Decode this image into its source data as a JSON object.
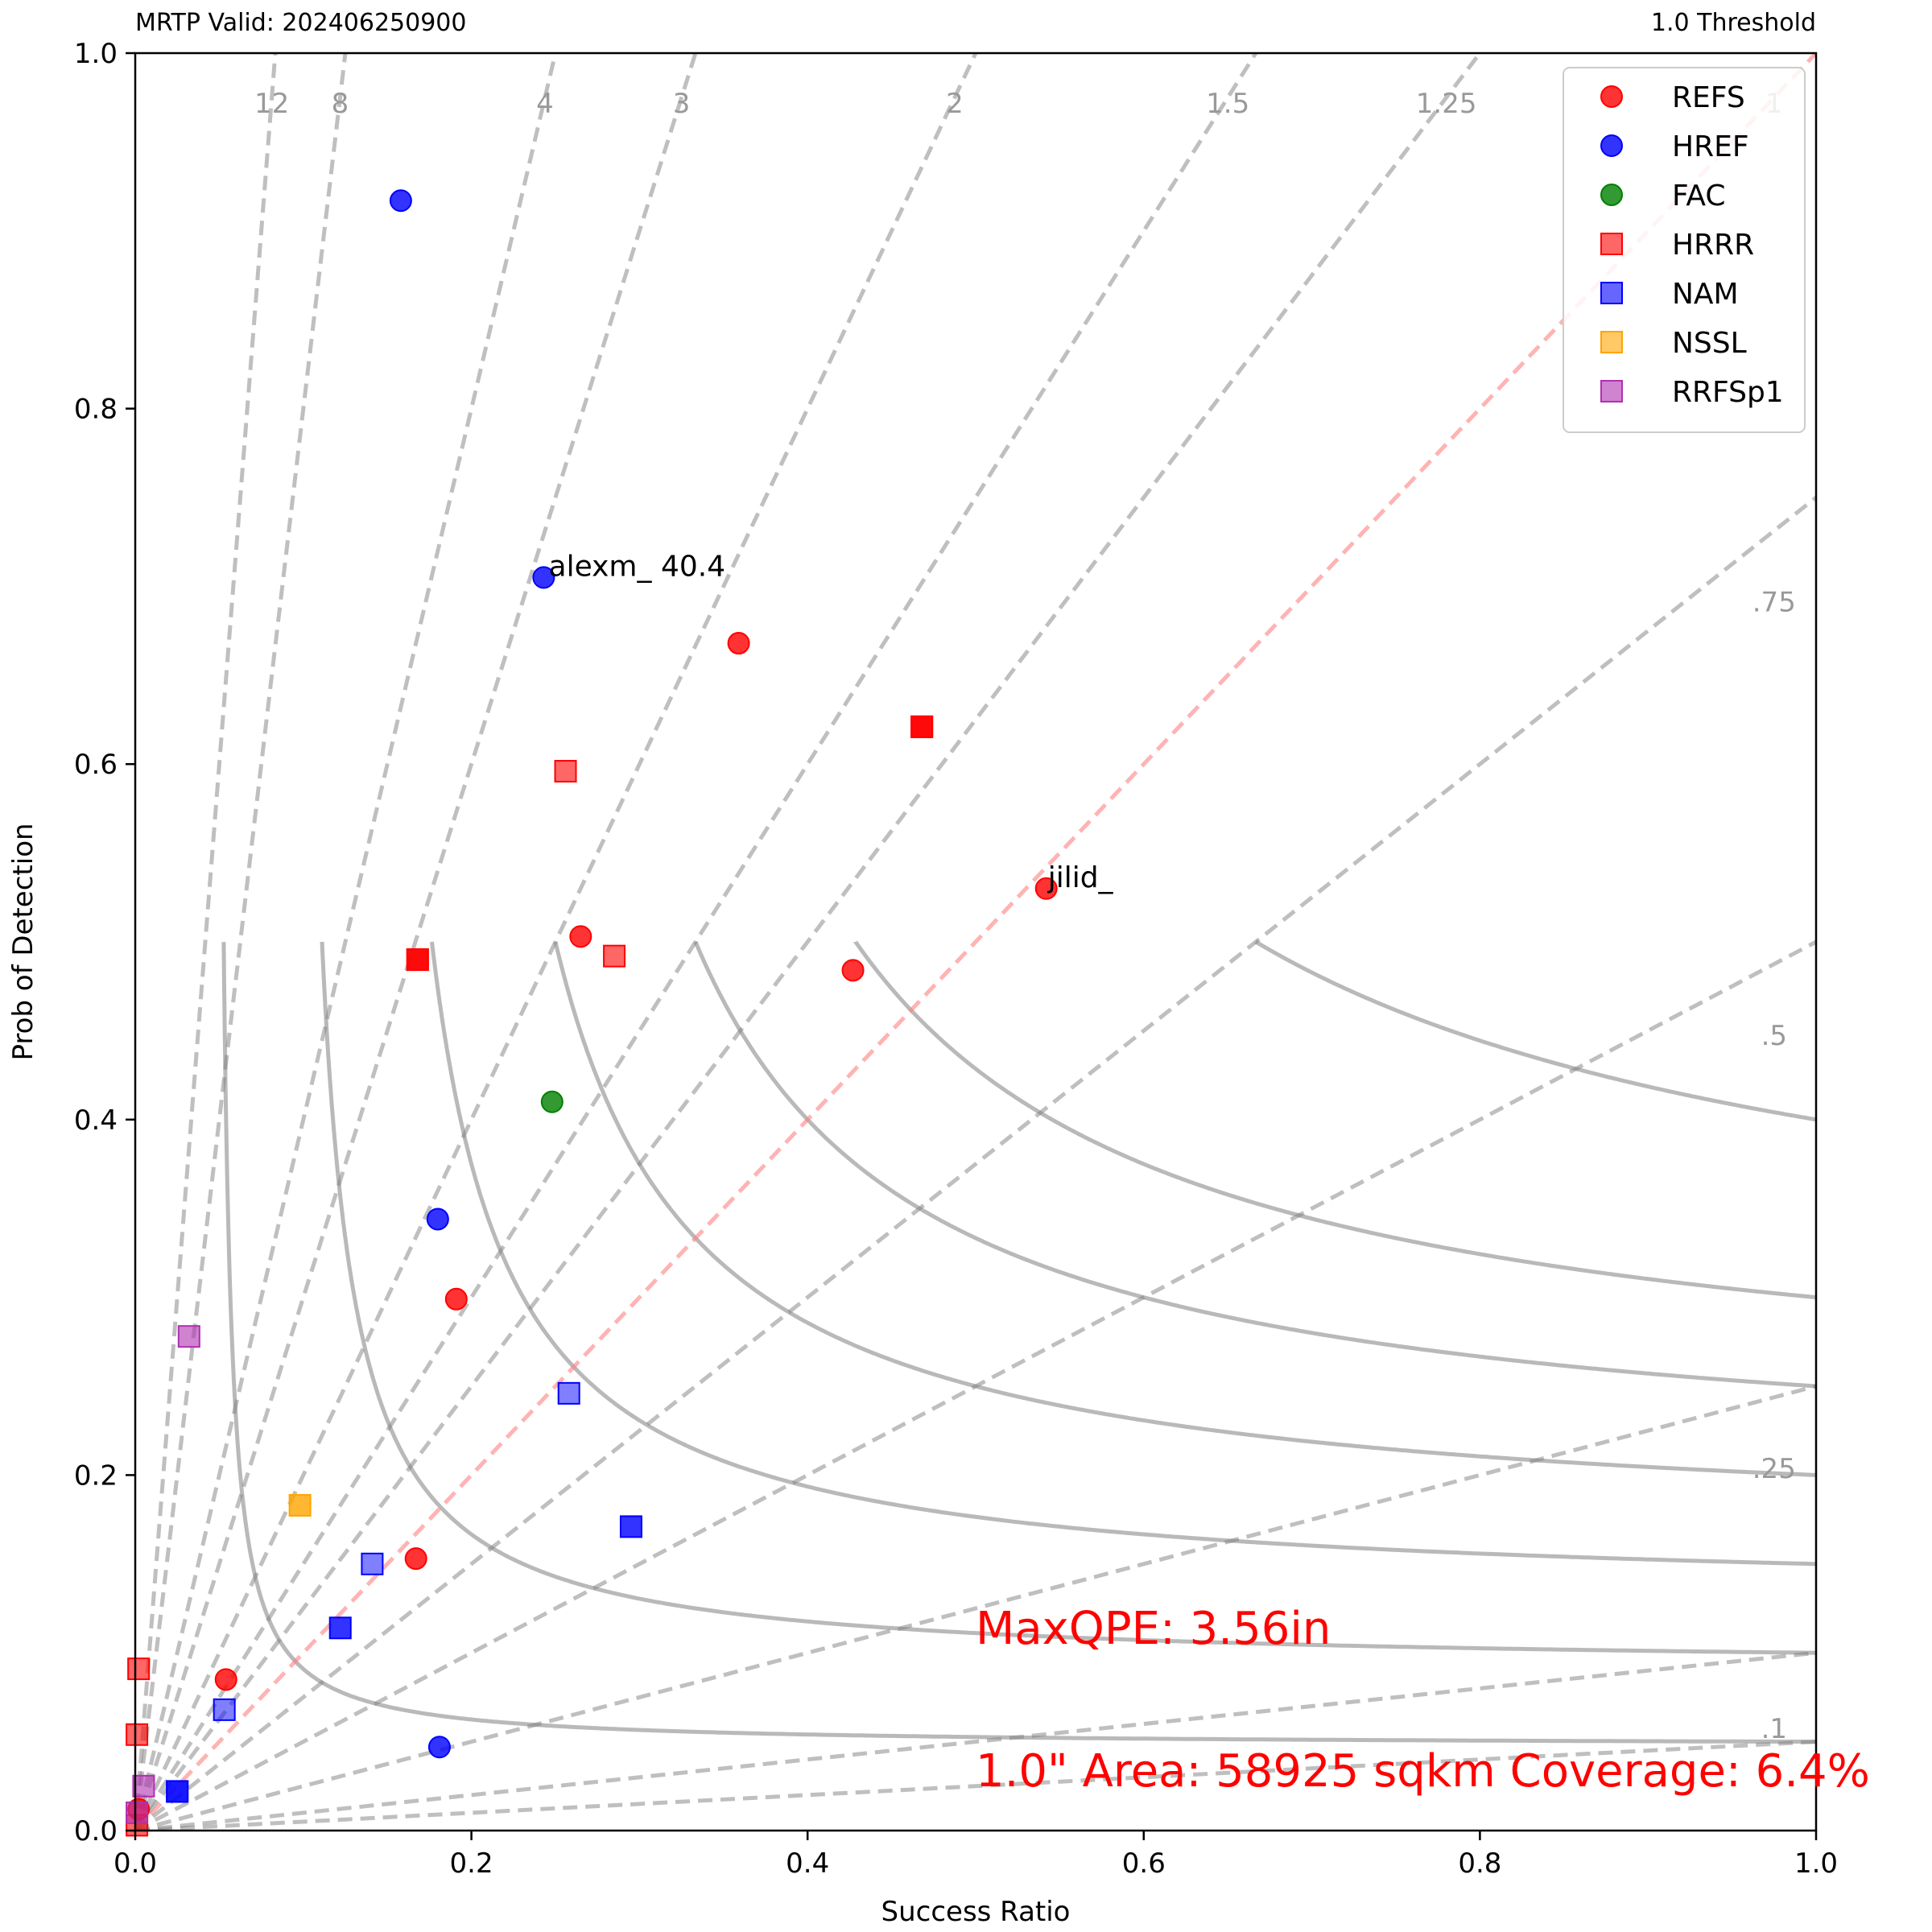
{
  "header": {
    "left": "MRTP Valid: 202406250900",
    "right": "1.0 Threshold"
  },
  "chart_data": {
    "type": "scatter",
    "xlabel": "Success Ratio",
    "ylabel": "Prob of Detection",
    "xlim": [
      0,
      1
    ],
    "ylim": [
      0,
      1
    ],
    "x_ticks": [
      "0.0",
      "0.2",
      "0.4",
      "0.6",
      "0.8",
      "1.0"
    ],
    "y_ticks": [
      "0.0",
      "0.2",
      "0.4",
      "0.6",
      "0.8",
      "1.0"
    ],
    "grid": false,
    "legend_position": "top-right",
    "bias_lines": [
      {
        "value": 12,
        "label": "12"
      },
      {
        "value": 8,
        "label": "8"
      },
      {
        "value": 4,
        "label": "4"
      },
      {
        "value": 3,
        "label": "3"
      },
      {
        "value": 2,
        "label": "2"
      },
      {
        "value": 1.5,
        "label": "1.5"
      },
      {
        "value": 1.25,
        "label": "1.25"
      },
      {
        "value": 1,
        "label": "1"
      },
      {
        "value": 0.75,
        "label": ".75"
      },
      {
        "value": 0.5,
        "label": ".5"
      },
      {
        "value": 0.25,
        "label": ".25"
      },
      {
        "value": 0.1,
        "label": ".1"
      },
      {
        "value": 0.05,
        "label": ""
      }
    ],
    "csi_values": [
      0.05,
      0.1,
      0.15,
      0.2,
      0.25,
      0.3,
      0.4,
      0.5,
      0.6,
      0.7,
      0.8,
      0.9
    ],
    "series": [
      {
        "name": "REFS",
        "marker": "circle",
        "color": "#ff0000",
        "alpha": 0.8,
        "points": [
          [
            0.359,
            0.668
          ],
          [
            0.427,
            0.484
          ],
          [
            0.265,
            0.503
          ],
          [
            0.191,
            0.299
          ],
          [
            0.167,
            0.153
          ],
          [
            0.054,
            0.085
          ],
          [
            0.542,
            0.53
          ],
          [
            0.002,
            0.012
          ]
        ]
      },
      {
        "name": "HREF",
        "marker": "circle",
        "color": "#0000ff",
        "alpha": 0.8,
        "points": [
          [
            0.158,
            0.917
          ],
          [
            0.243,
            0.705
          ],
          [
            0.18,
            0.344
          ],
          [
            0.181,
            0.047
          ]
        ]
      },
      {
        "name": "FAC",
        "marker": "circle",
        "color": "#008000",
        "alpha": 0.8,
        "points": [
          [
            0.248,
            0.41
          ]
        ]
      },
      {
        "name": "HRRR",
        "marker": "square",
        "color": "#ff0000",
        "alpha": 0.6,
        "points": [
          [
            0.256,
            0.596
          ],
          [
            0.168,
            0.49
          ],
          [
            0.285,
            0.492
          ],
          [
            0.468,
            0.621
          ],
          [
            0.002,
            0.091
          ],
          [
            0.001,
            0.054
          ],
          [
            0.001,
            0.003
          ]
        ]
      },
      {
        "name": "HRRR",
        "marker": "square",
        "color": "#ff0000",
        "alpha": 0.9,
        "legend": false,
        "points": [
          [
            0.168,
            0.49
          ],
          [
            0.468,
            0.621
          ]
        ]
      },
      {
        "name": "NAM",
        "marker": "square",
        "color": "#0000ff",
        "alpha": 0.5,
        "points": [
          [
            0.258,
            0.246
          ],
          [
            0.141,
            0.15
          ],
          [
            0.053,
            0.068
          ],
          [
            0.025,
            0.022
          ]
        ]
      },
      {
        "name": "NAM",
        "marker": "square",
        "color": "#0000ff",
        "alpha": 0.8,
        "legend": false,
        "points": [
          [
            0.295,
            0.171
          ],
          [
            0.122,
            0.114
          ],
          [
            0.025,
            0.022
          ]
        ]
      },
      {
        "name": "NSSL",
        "marker": "square",
        "color": "#ffa500",
        "alpha": 0.8,
        "points": [
          [
            0.098,
            0.183
          ]
        ]
      },
      {
        "name": "RRFSp1",
        "marker": "square",
        "color": "#b030b0",
        "alpha": 0.6,
        "points": [
          [
            0.032,
            0.278
          ],
          [
            0.005,
            0.025
          ],
          [
            0.001,
            0.01
          ]
        ]
      }
    ],
    "legend": [
      {
        "name": "REFS",
        "marker": "circle",
        "color": "#ff0000"
      },
      {
        "name": "HREF",
        "marker": "circle",
        "color": "#0000ff"
      },
      {
        "name": "FAC",
        "marker": "circle",
        "color": "#008000"
      },
      {
        "name": "HRRR",
        "marker": "square",
        "color": "#ff0000"
      },
      {
        "name": "NAM",
        "marker": "square",
        "color": "#0000ff"
      },
      {
        "name": "NSSL",
        "marker": "square",
        "color": "#ffa500"
      },
      {
        "name": "RRFSp1",
        "marker": "square",
        "color": "#b030b0"
      }
    ],
    "annotations": [
      {
        "text": "alexm_ 40.4",
        "x": 0.245,
        "y": 0.705
      },
      {
        "text": "jilid_",
        "x": 0.542,
        "y": 0.53
      }
    ],
    "text_boxes": [
      {
        "text": "MaxQPE: 3.56in",
        "x": 0.5,
        "y": 0.105
      },
      {
        "text": "1.0\" Area: 58925 sqkm Coverage: 6.4%",
        "x": 0.5,
        "y": 0.025
      }
    ]
  }
}
